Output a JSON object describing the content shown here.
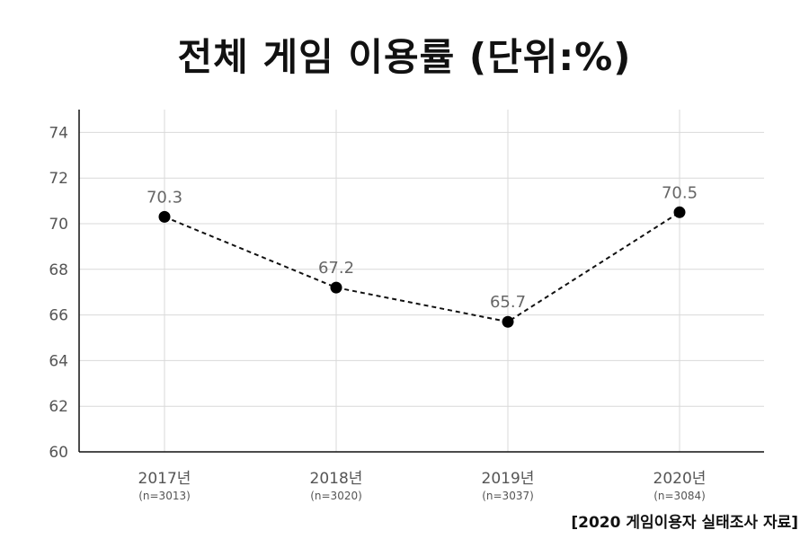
{
  "chart_data": {
    "type": "line",
    "title": "전체 게임 이용률 (단위:%)",
    "categories": [
      "2017년",
      "2018년",
      "2019년",
      "2020년"
    ],
    "sample_sizes": [
      "(n=3013)",
      "(n=3020)",
      "(n=3037)",
      "(n=3084)"
    ],
    "series": [
      {
        "values": [
          70.3,
          67.2,
          65.7,
          70.5
        ],
        "data_labels": [
          "70.3",
          "67.2",
          "65.7",
          "70.5"
        ]
      }
    ],
    "y_ticks": [
      "60",
      "62",
      "64",
      "66",
      "68",
      "70",
      "72",
      "74"
    ],
    "ylim": [
      60,
      75
    ],
    "grid": true,
    "line_style": "dashed",
    "colors": {
      "line": "#111111",
      "marker": "#000000",
      "grid": "#d9d9d9",
      "axis": "#111111"
    }
  },
  "source_note": "[2020 게임이용자 실태조사 자료]"
}
